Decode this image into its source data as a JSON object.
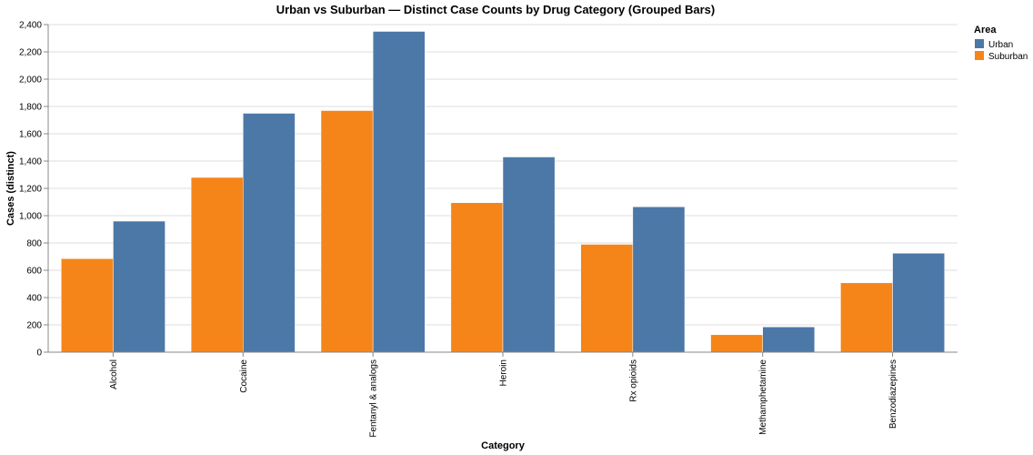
{
  "chart_data": {
    "type": "bar",
    "title": "Urban vs Suburban — Distinct Case Counts by Drug Category (Grouped Bars)",
    "xlabel": "Category",
    "ylabel": "Cases (distinct)",
    "categories": [
      "Alcohol",
      "Cocaine",
      "Fentanyl & analogs",
      "Heroin",
      "Rx opioids",
      "Methamphetamine",
      "Benzodiazepines"
    ],
    "series": [
      {
        "name": "Suburban",
        "color": "#f58518",
        "values": [
          685,
          1280,
          1770,
          1095,
          790,
          128,
          508
        ]
      },
      {
        "name": "Urban",
        "color": "#4c78a8",
        "values": [
          960,
          1750,
          2350,
          1430,
          1065,
          185,
          725
        ]
      }
    ],
    "ylim": [
      0,
      2400
    ],
    "yticks": [
      0,
      200,
      400,
      600,
      800,
      1000,
      1200,
      1400,
      1600,
      1800,
      2000,
      2200,
      2400
    ],
    "ytick_labels": [
      "0",
      "200",
      "400",
      "600",
      "800",
      "1,000",
      "1,200",
      "1,400",
      "1,600",
      "1,800",
      "2,000",
      "2,200",
      "2,400"
    ],
    "grid": true,
    "legend": {
      "title": "Area",
      "placement": "top-right",
      "items": [
        {
          "label": "Urban",
          "color": "#4c78a8"
        },
        {
          "label": "Suburban",
          "color": "#f58518"
        }
      ]
    }
  }
}
